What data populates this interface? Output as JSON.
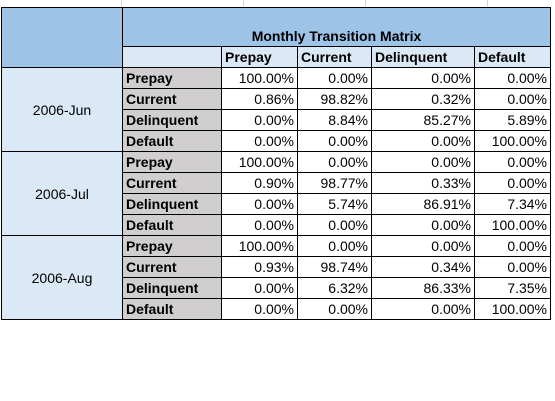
{
  "title": "Monthly Transition Matrix",
  "columns": [
    "Prepay",
    "Current",
    "Delinquent",
    "Default"
  ],
  "groups": [
    {
      "month": "2006-Jun",
      "rows": [
        {
          "label": "Prepay",
          "values": [
            "100.00%",
            "0.00%",
            "0.00%",
            "0.00%"
          ]
        },
        {
          "label": "Current",
          "values": [
            "0.86%",
            "98.82%",
            "0.32%",
            "0.00%"
          ]
        },
        {
          "label": "Delinquent",
          "values": [
            "0.00%",
            "8.84%",
            "85.27%",
            "5.89%"
          ]
        },
        {
          "label": "Default",
          "values": [
            "0.00%",
            "0.00%",
            "0.00%",
            "100.00%"
          ]
        }
      ]
    },
    {
      "month": "2006-Jul",
      "rows": [
        {
          "label": "Prepay",
          "values": [
            "100.00%",
            "0.00%",
            "0.00%",
            "0.00%"
          ]
        },
        {
          "label": "Current",
          "values": [
            "0.90%",
            "98.77%",
            "0.33%",
            "0.00%"
          ]
        },
        {
          "label": "Delinquent",
          "values": [
            "0.00%",
            "5.74%",
            "86.91%",
            "7.34%"
          ]
        },
        {
          "label": "Default",
          "values": [
            "0.00%",
            "0.00%",
            "0.00%",
            "100.00%"
          ]
        }
      ]
    },
    {
      "month": "2006-Aug",
      "rows": [
        {
          "label": "Prepay",
          "values": [
            "100.00%",
            "0.00%",
            "0.00%",
            "0.00%"
          ]
        },
        {
          "label": "Current",
          "values": [
            "0.93%",
            "98.74%",
            "0.34%",
            "0.00%"
          ]
        },
        {
          "label": "Delinquent",
          "values": [
            "0.00%",
            "6.32%",
            "86.33%",
            "7.35%"
          ]
        },
        {
          "label": "Default",
          "values": [
            "0.00%",
            "0.00%",
            "0.00%",
            "100.00%"
          ]
        }
      ]
    }
  ]
}
